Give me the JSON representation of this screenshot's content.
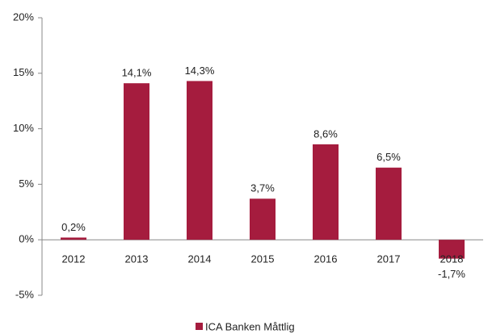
{
  "chart_data": {
    "type": "bar",
    "categories": [
      "2012",
      "2013",
      "2014",
      "2015",
      "2016",
      "2017",
      "2018"
    ],
    "series": [
      {
        "name": "ICA Banken Måttlig",
        "color": "#a51c3e",
        "values": [
          0.2,
          14.1,
          14.3,
          3.7,
          8.6,
          6.5,
          -1.7
        ],
        "value_labels": [
          "0,2%",
          "14,1%",
          "14,3%",
          "3,7%",
          "8,6%",
          "6,5%",
          "-1,7%"
        ]
      }
    ],
    "ylim": [
      -5,
      20
    ],
    "yticks": [
      {
        "value": -5,
        "label": "-5%"
      },
      {
        "value": 0,
        "label": "0%"
      },
      {
        "value": 5,
        "label": "5%"
      },
      {
        "value": 10,
        "label": "10%"
      },
      {
        "value": 15,
        "label": "15%"
      },
      {
        "value": 20,
        "label": "20%"
      }
    ],
    "legend": "bottom"
  }
}
